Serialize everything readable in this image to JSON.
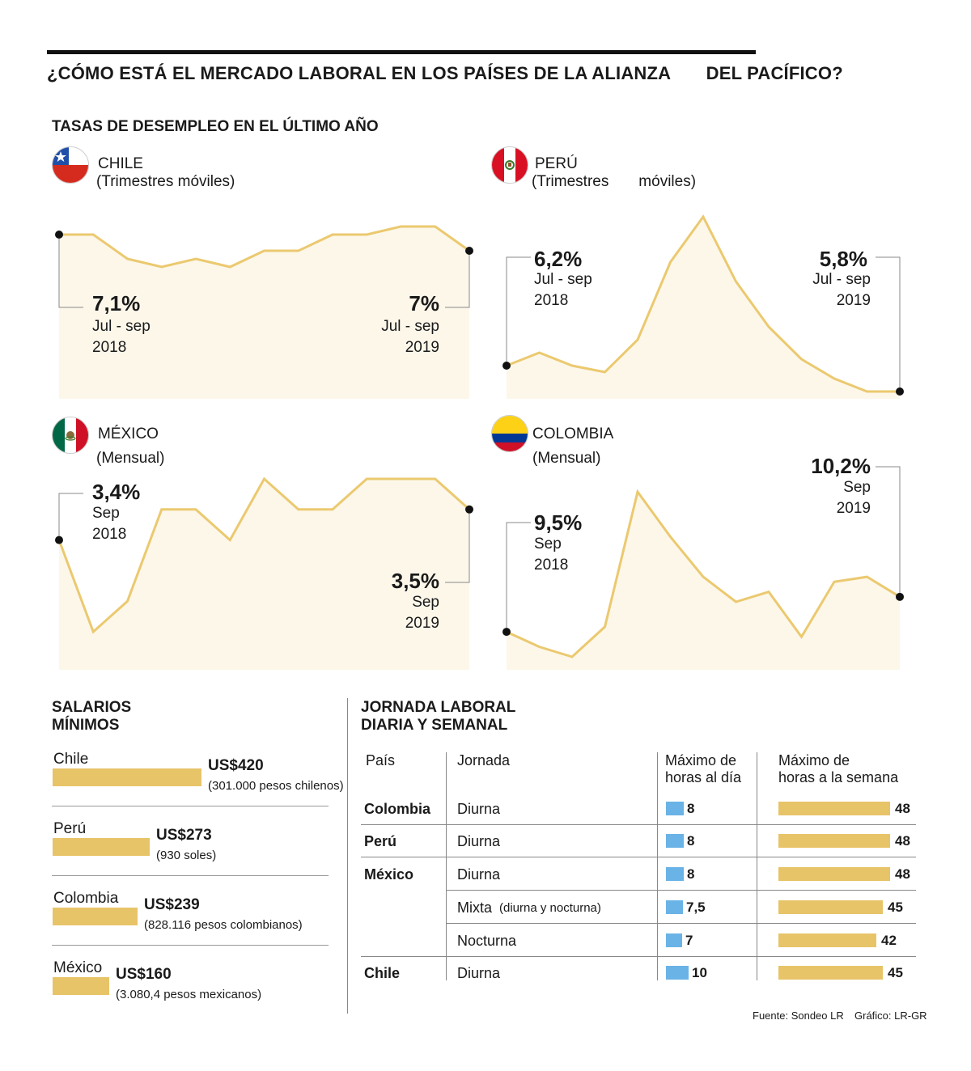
{
  "header": {
    "title": "¿CÓMO ESTÁ EL MERCADO LABORAL EN LOS PAÍSES DE LA ALIANZA       DEL PACÍFICO?",
    "unemployment_title": "TASAS DE DESEMPLEO EN EL ÚLTIMO AÑO"
  },
  "colors": {
    "area": "#fdf7ea",
    "line": "#ebc96f",
    "bar": "#e8c468",
    "blue": "#6ab3e6"
  },
  "chart_data": [
    {
      "type": "area",
      "title": "CHILE",
      "subtitle": "(Trimestres móviles)",
      "values": [
        7.1,
        7.1,
        6.95,
        6.9,
        6.95,
        6.9,
        7.0,
        7.0,
        7.1,
        7.1,
        7.15,
        7.15,
        7.0
      ],
      "start": {
        "value": "7,1%",
        "period": "Jul - sep",
        "year": "2018"
      },
      "end": {
        "value": "7%",
        "period": "Jul - sep",
        "year": "2019"
      }
    },
    {
      "type": "area",
      "title": "PERÚ",
      "subtitle": "(Trimestres       móviles)",
      "values": [
        6.2,
        6.4,
        6.2,
        6.1,
        6.6,
        7.8,
        8.5,
        7.5,
        6.8,
        6.3,
        6.0,
        5.8,
        5.8
      ],
      "start": {
        "value": "6,2%",
        "period": "Jul - sep",
        "year": "2018"
      },
      "end": {
        "value": "5,8%",
        "period": "Jul - sep",
        "year": "2019"
      }
    },
    {
      "type": "area",
      "title": "MÉXICO",
      "subtitle": "(Mensual)",
      "values": [
        3.4,
        3.1,
        3.2,
        3.5,
        3.5,
        3.4,
        3.6,
        3.5,
        3.5,
        3.6,
        3.6,
        3.6,
        3.5
      ],
      "start": {
        "value": "3,4%",
        "period": "Sep",
        "year": "2018"
      },
      "end": {
        "value": "3,5%",
        "period": "Sep",
        "year": "2019"
      }
    },
    {
      "type": "area",
      "title": "COLOMBIA",
      "subtitle": "(Mensual)",
      "values": [
        9.5,
        9.2,
        9.0,
        9.6,
        12.3,
        11.4,
        10.6,
        10.1,
        10.3,
        9.4,
        10.5,
        10.6,
        10.2
      ],
      "start": {
        "value": "9,5%",
        "period": "Sep",
        "year": "2018"
      },
      "end": {
        "value": "10,2%",
        "period": "Sep",
        "year": "2019"
      }
    },
    {
      "type": "bar",
      "title": "SALARIOS MÍNIMOS",
      "items": [
        {
          "country": "Chile",
          "amount": "US$420",
          "note": "(301.000 pesos chilenos)",
          "value": 420
        },
        {
          "country": "Perú",
          "amount": "US$273",
          "note": "(930 soles)",
          "value": 273
        },
        {
          "country": "Colombia",
          "amount": "US$239",
          "note": "(828.116 pesos colombianos)",
          "value": 239
        },
        {
          "country": "México",
          "amount": "US$160",
          "note": "(3.080,4 pesos mexicanos)",
          "value": 160
        }
      ]
    },
    {
      "type": "table",
      "title": "JORNADA LABORAL DIARIA Y SEMANAL",
      "columns": [
        "País",
        "Jornada",
        "Máximo de horas al día",
        "Máximo de horas a la semana"
      ],
      "rows": [
        {
          "country": "Colombia",
          "shift": "Diurna",
          "shift_note": "",
          "day": "8",
          "day_value": 8,
          "week": "48",
          "week_value": 48
        },
        {
          "country": "Perú",
          "shift": "Diurna",
          "shift_note": "",
          "day": "8",
          "day_value": 8,
          "week": "48",
          "week_value": 48
        },
        {
          "country": "México",
          "shift": "Diurna",
          "shift_note": "",
          "day": "8",
          "day_value": 8,
          "week": "48",
          "week_value": 48
        },
        {
          "country": "",
          "shift": "Mixta",
          "shift_note": "(diurna y nocturna)",
          "day": "7,5",
          "day_value": 7.5,
          "week": "45",
          "week_value": 45
        },
        {
          "country": "",
          "shift": "Nocturna",
          "shift_note": "",
          "day": "7",
          "day_value": 7,
          "week": "42",
          "week_value": 42
        },
        {
          "country": "Chile",
          "shift": "Diurna",
          "shift_note": "",
          "day": "10",
          "day_value": 10,
          "week": "45",
          "week_value": 45
        }
      ]
    }
  ],
  "salary_title_1": "SALARIOS",
  "salary_title_2": "MÍNIMOS",
  "hours_title_1": "JORNADA LABORAL",
  "hours_title_2": "DIARIA Y SEMANAL",
  "col_day_1": "Máximo de",
  "col_day_2": "horas al día",
  "col_week_1": "Máximo de",
  "col_week_2": "horas a la semana",
  "footer": {
    "source": "Fuente: Sondeo LR",
    "credit": "Gráfico: LR-GR"
  }
}
